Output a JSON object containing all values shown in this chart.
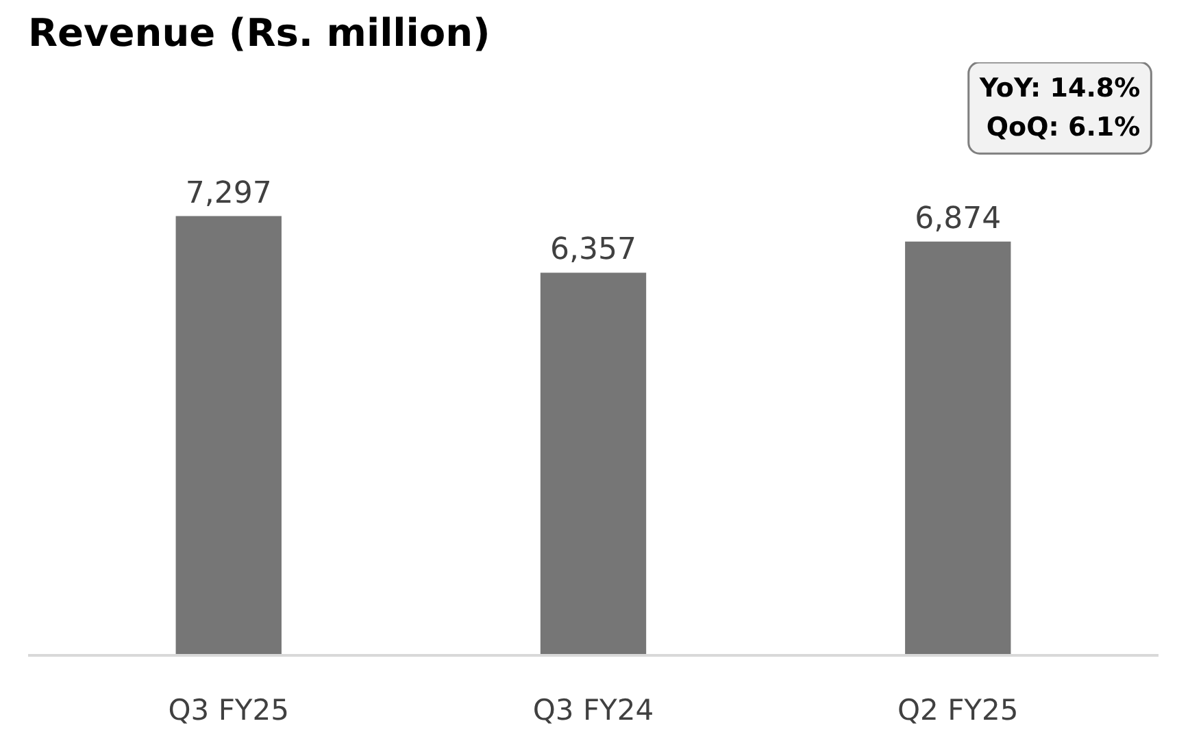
{
  "chart_data": {
    "type": "bar",
    "title": "Revenue (Rs. million)",
    "categories": [
      "Q3 FY25",
      "Q3 FY24",
      "Q2 FY25"
    ],
    "values": [
      7297,
      6357,
      6874
    ],
    "value_labels": [
      "7,297",
      "6,357",
      "6,874"
    ],
    "color": "#767676",
    "grid": false,
    "annotations": [
      "YoY: 14.8%",
      "QoQ: 6.1%"
    ]
  }
}
